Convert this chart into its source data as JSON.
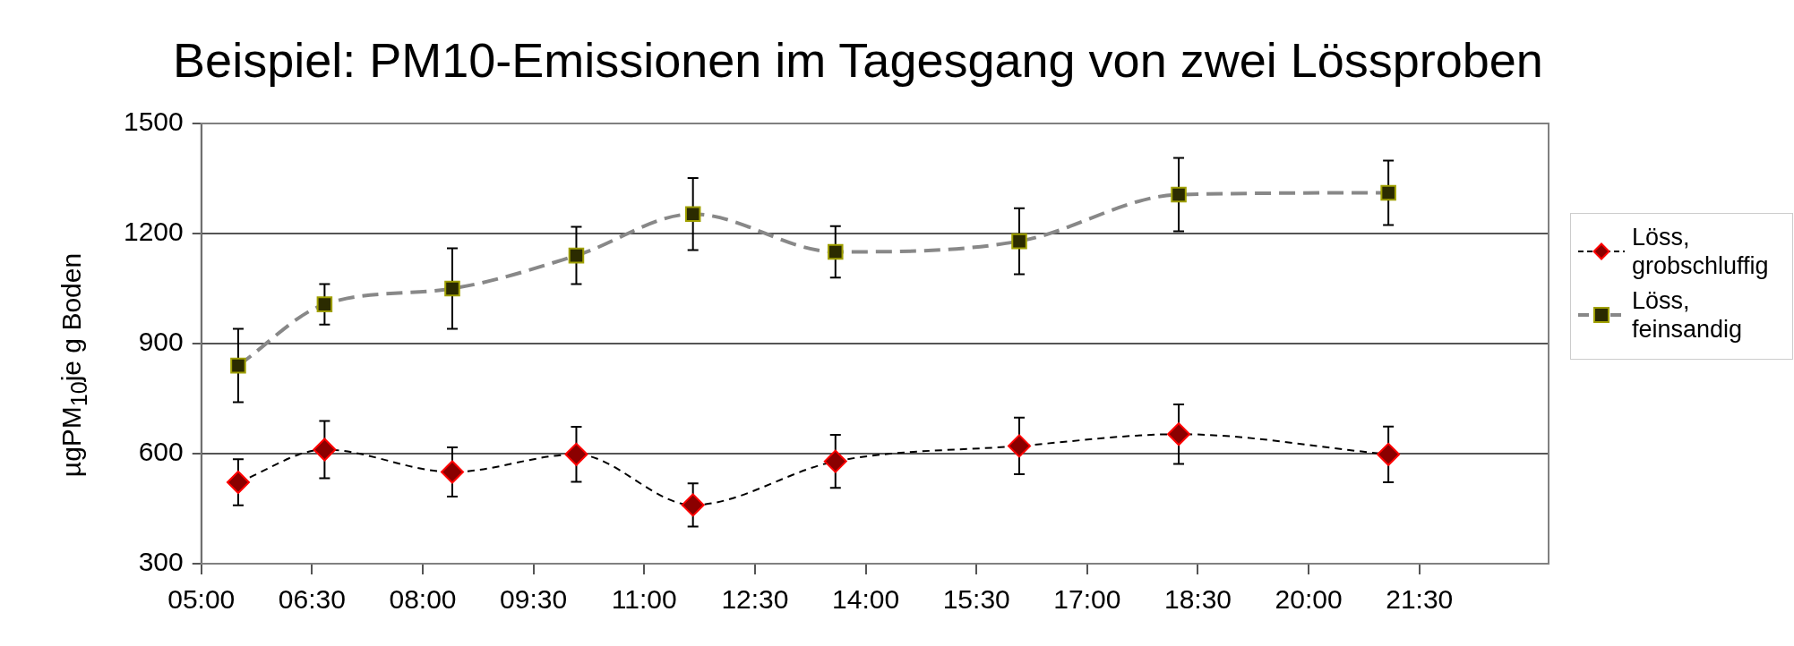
{
  "chart_data": {
    "type": "line",
    "title": "Beispiel: PM10-Emissionen im Tagesgang von zwei Lössproben",
    "ylabel": "µgPM$_{10}$je g Boden",
    "xlim": [
      5,
      23.25
    ],
    "xticks": [
      {
        "value": 5,
        "label": "05:00"
      },
      {
        "value": 6.5,
        "label": "06:30"
      },
      {
        "value": 8,
        "label": "08:00"
      },
      {
        "value": 9.5,
        "label": "09:30"
      },
      {
        "value": 11,
        "label": "11:00"
      },
      {
        "value": 12.5,
        "label": "12:30"
      },
      {
        "value": 14,
        "label": "14:00"
      },
      {
        "value": 15.5,
        "label": "15:30"
      },
      {
        "value": 17,
        "label": "17:00"
      },
      {
        "value": 18.5,
        "label": "18:30"
      },
      {
        "value": 20,
        "label": "20:00"
      },
      {
        "value": 21.5,
        "label": "21:30"
      }
    ],
    "ylim": [
      300,
      1500
    ],
    "yticks": [
      300,
      600,
      900,
      1200,
      1500
    ],
    "grid": "y",
    "legend": "right",
    "line_style": "dashed",
    "series": [
      {
        "name": "Löss, grobschluffig",
        "color": "#8b0000",
        "marker": "diamond",
        "x": [
          5.5,
          6.67,
          8.4,
          10.08,
          11.66,
          13.59,
          16.08,
          18.24,
          21.08
        ],
        "values": [
          522,
          611,
          550,
          598,
          460,
          579,
          621,
          653,
          598
        ],
        "errors": [
          63,
          78,
          67,
          75,
          59,
          72,
          77,
          81,
          76
        ]
      },
      {
        "name": "Löss, feinsandig",
        "color": "#2b2b00",
        "marker": "square",
        "x": [
          5.5,
          6.67,
          8.4,
          10.08,
          11.66,
          13.59,
          16.08,
          18.24,
          21.08
        ],
        "values": [
          840,
          1007,
          1050,
          1140,
          1253,
          1150,
          1179,
          1306,
          1311
        ],
        "errors": [
          100,
          55,
          110,
          78,
          98,
          70,
          90,
          100,
          88
        ]
      }
    ]
  }
}
